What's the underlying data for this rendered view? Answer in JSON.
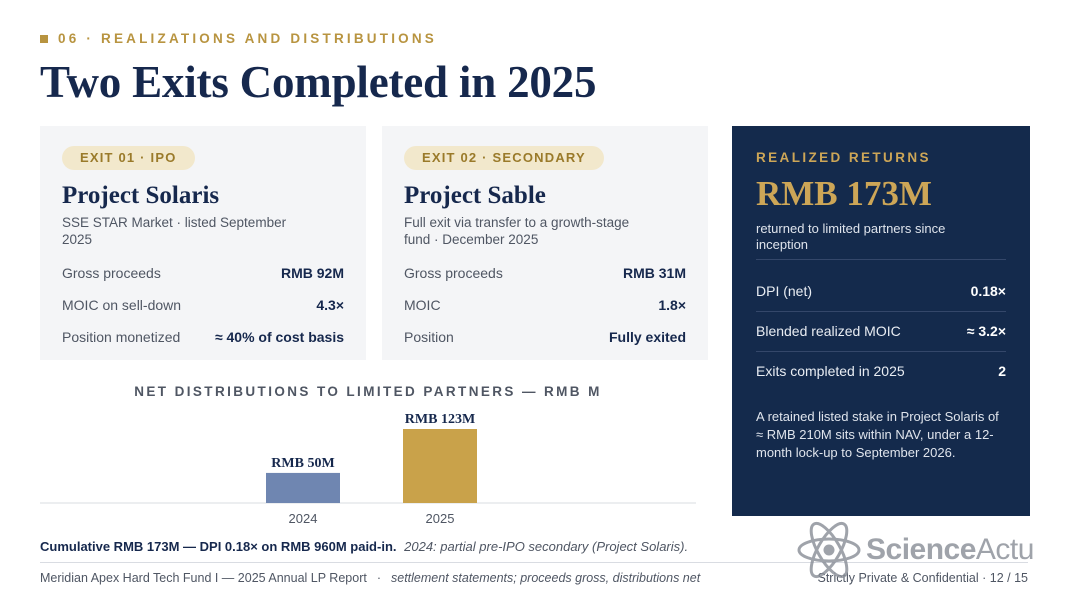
{
  "header": {
    "section_tag": "06 · REALIZATIONS AND DISTRIBUTIONS",
    "title": "Two Exits Completed in 2025"
  },
  "exits": [
    {
      "pill": "EXIT 01 · IPO",
      "name": "Project Solaris",
      "desc": "SSE STAR Market · listed September 2025",
      "rows": [
        {
          "label": "Gross proceeds",
          "value": "RMB 92M"
        },
        {
          "label": "MOIC on sell-down",
          "value": "4.3×"
        },
        {
          "label": "Position monetized",
          "value": "≈ 40% of cost basis"
        }
      ]
    },
    {
      "pill": "EXIT 02 · SECONDARY",
      "name": "Project Sable",
      "desc": "Full exit via transfer to a growth-stage fund · December 2025",
      "rows": [
        {
          "label": "Gross proceeds",
          "value": "RMB 31M"
        },
        {
          "label": "MOIC",
          "value": "1.8×"
        },
        {
          "label": "Position",
          "value": "Fully exited"
        }
      ]
    }
  ],
  "panel": {
    "heading": "REALIZED RETURNS",
    "big": "RMB 173M",
    "sub": "returned to limited partners since inception",
    "rows": [
      {
        "label": "DPI (net)",
        "value": "0.18×"
      },
      {
        "label": "Blended realized MOIC",
        "value": "≈ 3.2×"
      },
      {
        "label": "Exits completed in 2025",
        "value": "2"
      }
    ],
    "note": "A retained listed stake in Project Solaris of ≈ RMB 210M sits within NAV, under a 12-month lock-up to September 2026."
  },
  "chart_data": {
    "type": "bar",
    "title": "NET DISTRIBUTIONS TO LIMITED PARTNERS — RMB M",
    "categories": [
      "2024",
      "2025"
    ],
    "values": [
      50,
      123
    ],
    "data_labels": [
      "RMB 50M",
      "RMB 123M"
    ],
    "colors": [
      "#6f86b1",
      "#c9a24a"
    ],
    "ylim": [
      0,
      123
    ],
    "grid": false
  },
  "summary": {
    "bold": "Cumulative RMB 173M — DPI 0.18× on RMB 960M paid-in.",
    "italic": "2024: partial pre-IPO secondary (Project Solaris)."
  },
  "footer": {
    "left": "Meridian Apex Hard Tech Fund I — 2025 Annual LP Report",
    "sep": "·",
    "middle": "settlement statements; proceeds gross, distributions net",
    "right": "Strictly Private & Confidential · 12 / 15"
  },
  "watermark": {
    "bold": "Science",
    "light": "Actu",
    "icon": "atom-icon"
  }
}
